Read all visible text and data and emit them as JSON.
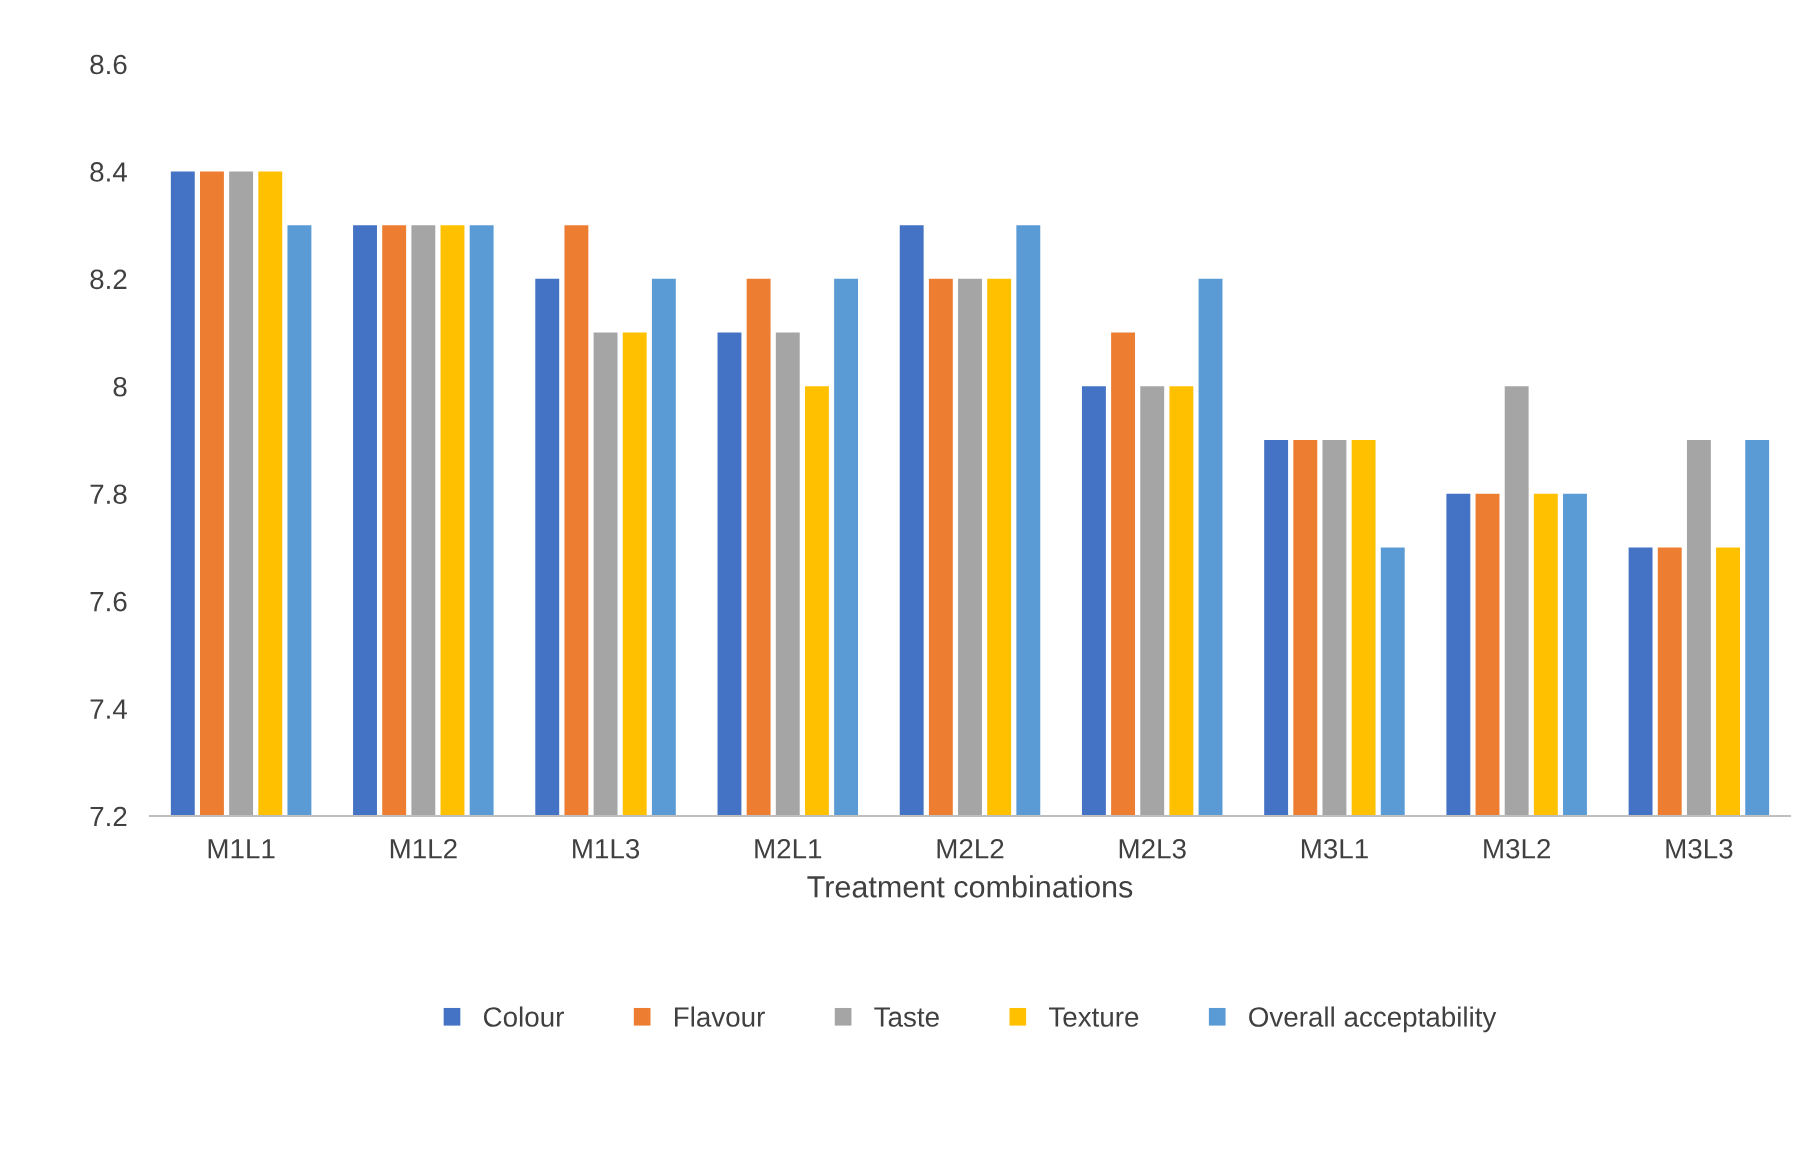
{
  "chart_data": {
    "type": "bar",
    "xlabel": "Treatment combinations",
    "categories": [
      "M1L1",
      "M1L2",
      "M1L3",
      "M2L1",
      "M2L2",
      "M2L3",
      "M3L1",
      "M3L2",
      "M3L3"
    ],
    "series": [
      {
        "name": "Colour",
        "color": "#4472c4",
        "values": [
          8.4,
          8.3,
          8.2,
          8.1,
          8.3,
          8.0,
          7.9,
          7.8,
          7.7
        ]
      },
      {
        "name": "Flavour",
        "color": "#ed7d31",
        "values": [
          8.4,
          8.3,
          8.3,
          8.2,
          8.2,
          8.1,
          7.9,
          7.8,
          7.7
        ]
      },
      {
        "name": "Taste",
        "color": "#a5a5a5",
        "values": [
          8.4,
          8.3,
          8.1,
          8.1,
          8.2,
          8.0,
          7.9,
          8.0,
          7.9
        ]
      },
      {
        "name": "Texture",
        "color": "#ffc000",
        "values": [
          8.4,
          8.3,
          8.1,
          8.0,
          8.2,
          8.0,
          7.9,
          7.8,
          7.7
        ]
      },
      {
        "name": "Overall acceptability",
        "color": "#5b9bd5",
        "values": [
          8.3,
          8.3,
          8.2,
          8.2,
          8.3,
          8.2,
          7.7,
          7.8,
          7.9
        ]
      }
    ],
    "ylim": [
      7.2,
      8.6
    ],
    "yticks": [
      7.2,
      7.4,
      7.6,
      7.8,
      8,
      8.2,
      8.4,
      8.6
    ],
    "grid": false,
    "legend": "bottom"
  }
}
